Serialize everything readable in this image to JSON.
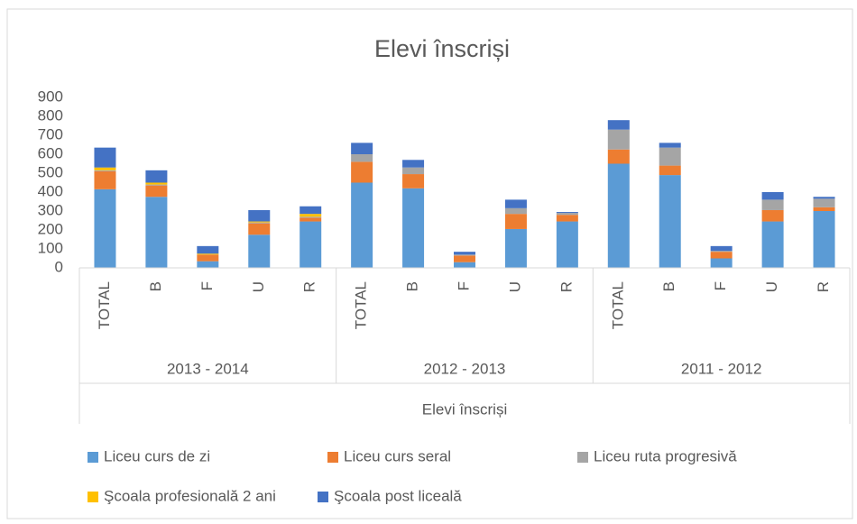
{
  "chart_data": {
    "type": "stacked_bar",
    "title": "Elevi înscriși",
    "x_label": "Elevi înscriși",
    "categories": [
      "TOTAL",
      "B",
      "F",
      "U",
      "R",
      "TOTAL",
      "B",
      "F",
      "U",
      "R",
      "TOTAL",
      "B",
      "F",
      "U",
      "R"
    ],
    "groups": [
      "2013 - 2014",
      "2012 - 2013",
      "2011 - 2012"
    ],
    "series": [
      {
        "name": "Liceu curs de zi",
        "color": "#5b9bd5",
        "values": [
          415,
          375,
          35,
          175,
          245,
          450,
          420,
          30,
          205,
          245,
          550,
          490,
          50,
          245,
          300
        ]
      },
      {
        "name": "Liceu curs seral",
        "color": "#ed7d31",
        "values": [
          95,
          60,
          35,
          60,
          20,
          110,
          75,
          35,
          80,
          35,
          75,
          50,
          35,
          60,
          20
        ]
      },
      {
        "name": "Liceu ruta progresivă",
        "color": "#a5a5a5",
        "values": [
          5,
          5,
          0,
          5,
          5,
          40,
          35,
          5,
          30,
          10,
          105,
          95,
          5,
          55,
          45
        ]
      },
      {
        "name": "Şcoala profesională 2 ani",
        "color": "#ffc000",
        "values": [
          15,
          10,
          5,
          5,
          15,
          0,
          0,
          0,
          0,
          0,
          0,
          0,
          0,
          0,
          0
        ]
      },
      {
        "name": "Şcoala post liceală",
        "color": "#4472c4",
        "values": [
          105,
          65,
          40,
          60,
          40,
          60,
          40,
          15,
          45,
          5,
          50,
          25,
          25,
          40,
          10
        ]
      }
    ],
    "ylim": [
      0,
      900
    ],
    "yticks": [
      0,
      100,
      200,
      300,
      400,
      500,
      600,
      700,
      800,
      900
    ],
    "grid": false
  }
}
